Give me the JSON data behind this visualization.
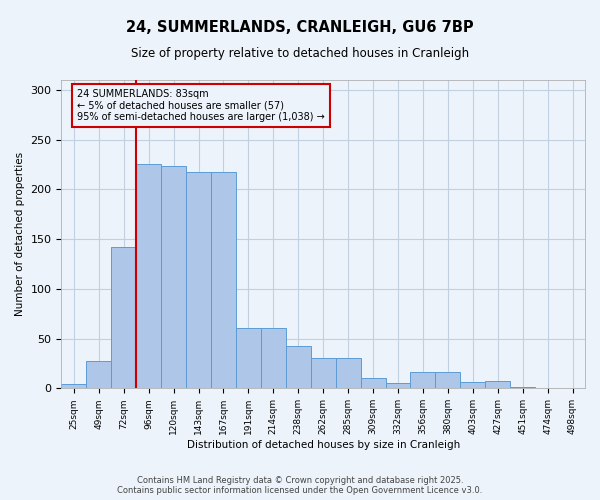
{
  "title": "24, SUMMERLANDS, CRANLEIGH, GU6 7BP",
  "subtitle": "Size of property relative to detached houses in Cranleigh",
  "xlabel": "Distribution of detached houses by size in Cranleigh",
  "ylabel": "Number of detached properties",
  "footer": "Contains HM Land Registry data © Crown copyright and database right 2025.\nContains public sector information licensed under the Open Government Licence v3.0.",
  "annotation_title": "24 SUMMERLANDS: 83sqm",
  "annotation_line1": "← 5% of detached houses are smaller (57)",
  "annotation_line2": "95% of semi-detached houses are larger (1,038) →",
  "bar_labels": [
    "25sqm",
    "49sqm",
    "72sqm",
    "96sqm",
    "120sqm",
    "143sqm",
    "167sqm",
    "191sqm",
    "214sqm",
    "238sqm",
    "262sqm",
    "285sqm",
    "309sqm",
    "332sqm",
    "356sqm",
    "380sqm",
    "403sqm",
    "427sqm",
    "451sqm",
    "474sqm",
    "498sqm"
  ],
  "bar_values": [
    4,
    27,
    142,
    226,
    224,
    218,
    218,
    61,
    61,
    43,
    31,
    31,
    10,
    5,
    16,
    16,
    6,
    7,
    1,
    0,
    0
  ],
  "bar_color": "#aec6e8",
  "bar_edge_color": "#5b9bd5",
  "vline_color": "#cc0000",
  "vline_x": 2.5,
  "annotation_box_color": "#cc0000",
  "grid_color": "#c0d0e0",
  "background_color": "#edf3fa",
  "ylim": [
    0,
    310
  ],
  "yticks": [
    0,
    50,
    100,
    150,
    200,
    250,
    300
  ]
}
